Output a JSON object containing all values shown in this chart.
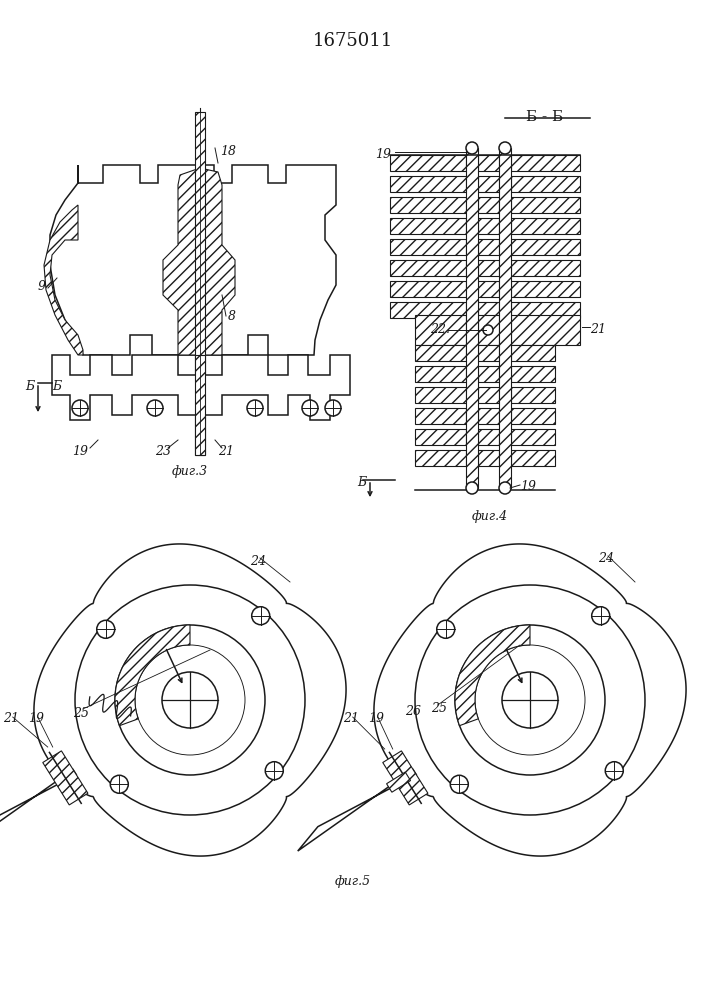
{
  "title": "1675011",
  "bg_color": "#ffffff",
  "line_color": "#1a1a1a",
  "fig3_caption": "фиг.3",
  "fig4_caption": "фиг.4",
  "fig5_caption": "фиг.5",
  "bb_label": "Б - Б"
}
